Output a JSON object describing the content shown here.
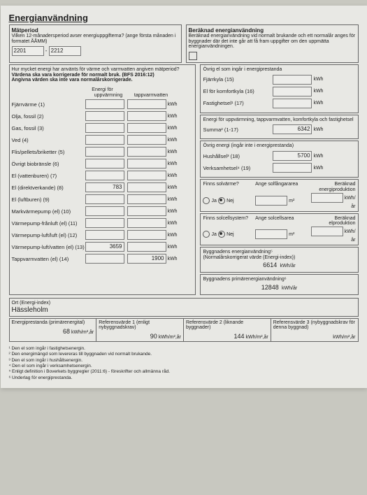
{
  "title": "Energianvändning",
  "matperiod": {
    "heading": "Mätperiod",
    "desc": "Vilken 12-månadersperiod avser energiuppgifterna? (ange första månaden i formatet ÅÅMM)",
    "from": "2201",
    "to": "2212",
    "dash": "-"
  },
  "beraknad": {
    "heading": "Beräknad energianvändning",
    "desc": "Beräknad energianvändning vid normalt brukande och ett normalår anges för byggnader där det inte går att få fram uppgifter om den uppmätta energianvändningen."
  },
  "leftNote": {
    "l1": "Hur mycket energi har använts för värme och varmvatten angiven mätperiod?",
    "l2": "Värdena ska vara korrigerade för normalt bruk. (BFS 2016:12)",
    "l3": "Angivna värden ska inte vara normalårskorrigerade."
  },
  "rightTop": "Övrig el som ingår i energiprestanda",
  "energiFor": "Energi för",
  "col1": "uppvärmning",
  "col2": "tappvarmvatten",
  "rows": [
    {
      "label": "Fjärrvärme (1)",
      "v1": "",
      "v2": ""
    },
    {
      "label": "Olja, fossil (2)",
      "v1": "",
      "v2": ""
    },
    {
      "label": "Gas, fossil (3)",
      "v1": "",
      "v2": ""
    },
    {
      "label": "Ved (4)",
      "v1": "",
      "v2": ""
    },
    {
      "label": "Flis/pellets/briketter (5)",
      "v1": "",
      "v2": ""
    },
    {
      "label": "Övrigt biobränsle (6)",
      "v1": "",
      "v2": ""
    },
    {
      "label": "El (vattenburen) (7)",
      "v1": "",
      "v2": ""
    },
    {
      "label": "El (direktverkande) (8)",
      "v1": "783",
      "v2": ""
    },
    {
      "label": "El (luftburen) (9)",
      "v1": "",
      "v2": ""
    },
    {
      "label": "Markvärmepump (el) (10)",
      "v1": "",
      "v2": ""
    },
    {
      "label": "Värmepump-frånluft (el) (11)",
      "v1": "",
      "v2": ""
    },
    {
      "label": "Värmepump-luft/luft (el) (12)",
      "v1": "",
      "v2": ""
    },
    {
      "label": "Värmepump-luft/vatten (el) (13)",
      "v1": "3659",
      "v2": ""
    },
    {
      "label": "Tappvarmvatten (el) (14)",
      "v1": "",
      "v2": "1900"
    }
  ],
  "unit": "kWh",
  "right": {
    "fjarrkyla": {
      "label": "Fjärrkyla (15)",
      "val": ""
    },
    "komfortkyla": {
      "label": "El för komfortkyla (16)",
      "val": ""
    },
    "fastighetsel": {
      "label": "Fastighetsel¹ (17)",
      "val": ""
    },
    "sumHead": "Energi för uppvärmning, tappvarmvatten, komfortkyla och fastighetsel",
    "sumLabel": "Summa² (1-17)",
    "sumVal": "6342",
    "ovrigHead": "Övrig energi (ingår inte i energiprestanda)",
    "hushall": {
      "label": "Hushållsel³ (18)",
      "val": "5700"
    },
    "verksam": {
      "label": "Verksamhetsel⁴ (19)",
      "val": ""
    }
  },
  "solar": {
    "q1": "Finns solvärme?",
    "q2": "Finns solcellsystem?",
    "ja": "Ja",
    "nej": "Nej",
    "area1": "Ange solfångararea",
    "area2": "Ange solcellsarea",
    "prod1": "Beräknad energiproduktion",
    "prod2": "Beräknad elproduktion",
    "m2": "m²",
    "kwhyr": "kWh/år"
  },
  "bygg": {
    "l1": "Byggnadens energianvändning⁵",
    "l2": "(Normalårskorrigerat värde (Energi-index))",
    "v1": "6614",
    "u1": "kWh/år",
    "l3": "Byggnadens primärenergianvändning⁶",
    "v2": "12848",
    "u2": "kWh/år"
  },
  "ort": {
    "label": "Ort (Energi-index)",
    "val": "Hässleholm"
  },
  "bottom": {
    "c1h": "Energiprestanda (primärenergital)",
    "c1v": "68",
    "c1u": "kWh/m²,år",
    "c2h": "Referensvärde 1 (enligt nybyggnadskrav)",
    "c2v": "90",
    "c2u": "kWh/m²,år",
    "c3h": "Referensvärde 2 (liknande byggnader)",
    "c3v": "144",
    "c3u": "kWh/m²,år",
    "c4h": "Referensvärde 3 (nybyggnadskrav för denna byggnad)",
    "c4v": "",
    "c4u": "kWh/m²,år"
  },
  "foot": {
    "f1": "¹ Den el som ingår i fastighetsenergin.",
    "f2": "² Den energimängd som levereras till byggnaden vid normalt brukande.",
    "f3": "³ Den el som ingår i hushållsenergin.",
    "f4": "⁴ Den el som ingår i verksamhetsenergin.",
    "f5": "⁵ Enligt definition i Boverkets byggregler (2011:6) - föreskrifter och allmänna råd.",
    "f6": "⁶ Underlag för energiprestanda."
  }
}
